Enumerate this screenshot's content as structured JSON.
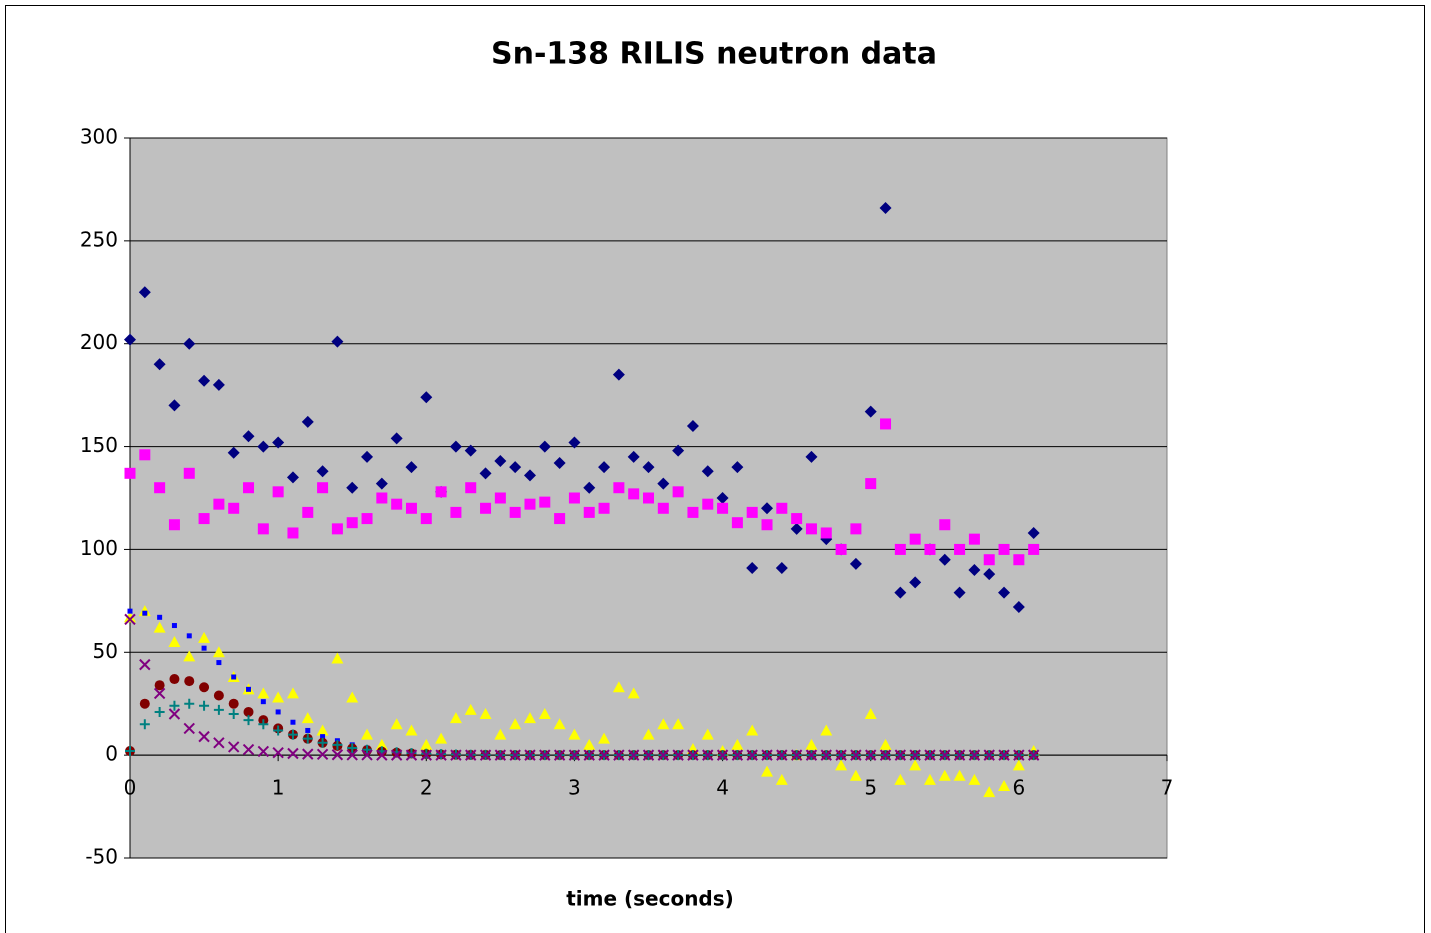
{
  "chart_data": {
    "type": "scatter",
    "title": "Sn-138 RILIS neutron data",
    "x_label": "time (seconds)",
    "xlim": [
      0,
      7
    ],
    "xticks": [
      0,
      1,
      2,
      3,
      4,
      5,
      6,
      7
    ],
    "ylim": [
      -50,
      300
    ],
    "yticks": [
      -50,
      0,
      50,
      100,
      150,
      200,
      250,
      300
    ],
    "grid": true,
    "plot_background": "#c0c0c0",
    "x": [
      0,
      0.1,
      0.2,
      0.3,
      0.4,
      0.5,
      0.6,
      0.7,
      0.8,
      0.9,
      1,
      1.1,
      1.2,
      1.3,
      1.4,
      1.5,
      1.6,
      1.7,
      1.8,
      1.9,
      2,
      2.1,
      2.2,
      2.3,
      2.4,
      2.5,
      2.6,
      2.7,
      2.8,
      2.9,
      3,
      3.1,
      3.2,
      3.3,
      3.4,
      3.5,
      3.6,
      3.7,
      3.8,
      3.9,
      4,
      4.1,
      4.2,
      4.3,
      4.4,
      4.5,
      4.6,
      4.7,
      4.8,
      4.9,
      5,
      5.1,
      5.2,
      5.3,
      5.4,
      5.5,
      5.6,
      5.7,
      5.8,
      5.9,
      6,
      6.1
    ],
    "series": [
      {
        "color": "#000080",
        "marker": "diamond",
        "values": [
          202,
          225,
          190,
          170,
          200,
          182,
          180,
          147,
          155,
          150,
          152,
          135,
          162,
          138,
          201,
          130,
          145,
          132,
          154,
          140,
          174,
          128,
          150,
          148,
          137,
          143,
          140,
          136,
          150,
          142,
          152,
          130,
          140,
          185,
          145,
          140,
          132,
          148,
          160,
          138,
          125,
          140,
          91,
          120,
          91,
          110,
          145,
          105,
          100,
          93,
          167,
          266,
          79,
          84,
          100,
          95,
          79,
          90,
          88,
          79,
          72,
          108
        ]
      },
      {
        "color": "#ff00ff",
        "marker": "square",
        "values": [
          137,
          146,
          130,
          112,
          137,
          115,
          122,
          120,
          130,
          110,
          128,
          108,
          118,
          130,
          110,
          113,
          115,
          125,
          122,
          120,
          115,
          128,
          118,
          130,
          120,
          125,
          118,
          122,
          123,
          115,
          125,
          118,
          120,
          130,
          127,
          125,
          120,
          128,
          118,
          122,
          120,
          113,
          118,
          112,
          120,
          115,
          110,
          108,
          100,
          110,
          132,
          161,
          100,
          105,
          100,
          112,
          100,
          105,
          95,
          100,
          95,
          100
        ]
      },
      {
        "color": "#ffff00",
        "marker": "triangle",
        "values": [
          67,
          70,
          62,
          55,
          48,
          57,
          50,
          38,
          32,
          30,
          28,
          30,
          18,
          12,
          47,
          28,
          10,
          5,
          15,
          12,
          5,
          8,
          18,
          22,
          20,
          10,
          15,
          18,
          20,
          15,
          10,
          5,
          8,
          33,
          30,
          10,
          15,
          15,
          3,
          10,
          2,
          5,
          12,
          -8,
          -12,
          0,
          5,
          12,
          -5,
          -10,
          20,
          5,
          -12,
          -5,
          -12,
          -10,
          -10,
          -12,
          -18,
          -15,
          -5,
          2
        ]
      },
      {
        "color": "#0000ff",
        "marker": "small-square",
        "values": [
          70,
          69,
          67,
          63,
          58,
          52,
          45,
          38,
          32,
          26,
          21,
          16,
          12,
          9,
          7,
          5,
          3.5,
          2.5,
          1.7,
          1.1,
          0.7,
          0.5,
          0.3,
          0.2,
          0.1,
          0,
          0,
          0,
          0,
          0,
          0,
          0,
          0,
          0,
          0,
          0,
          0,
          0,
          0,
          0,
          0,
          0,
          0,
          0,
          0,
          0,
          0,
          0,
          0,
          0,
          0,
          0,
          0,
          0,
          0,
          0,
          0,
          0,
          0,
          0,
          0,
          0
        ]
      },
      {
        "color": "#800000",
        "marker": "circle",
        "values": [
          2,
          25,
          34,
          37,
          36,
          33,
          29,
          25,
          21,
          17,
          13,
          10,
          8,
          6,
          4.5,
          3.3,
          2.4,
          1.7,
          1.2,
          0.8,
          0.5,
          0.3,
          0.2,
          0.1,
          0.1,
          0,
          0,
          0,
          0,
          0,
          0,
          0,
          0,
          0,
          0,
          0,
          0,
          0,
          0,
          0,
          0,
          0,
          0,
          0,
          0,
          0,
          0,
          0,
          0,
          0,
          0,
          0,
          0,
          0,
          0,
          0,
          0,
          0,
          0,
          0,
          0,
          0
        ]
      },
      {
        "color": "#008080",
        "marker": "plus",
        "values": [
          2,
          15,
          21,
          24,
          25,
          24,
          22,
          20,
          17,
          15,
          12,
          10,
          8,
          6,
          5,
          3.5,
          2.6,
          1.9,
          1.4,
          1,
          0.7,
          0.5,
          0.3,
          0.2,
          0.1,
          0,
          0,
          0,
          0,
          0,
          0,
          0,
          0,
          0,
          0,
          0,
          0,
          0,
          0,
          0,
          0,
          0,
          0,
          0,
          0,
          0,
          0,
          0,
          0,
          0,
          0,
          0,
          0,
          0,
          0,
          0,
          0,
          0,
          0,
          0,
          0,
          0
        ]
      },
      {
        "color": "#800080",
        "marker": "cross",
        "values": [
          66,
          44,
          30,
          20,
          13,
          9,
          6,
          4,
          2.7,
          1.8,
          1.2,
          0.8,
          0.5,
          0.4,
          0.2,
          0.1,
          0.1,
          0,
          0,
          0,
          0,
          0,
          0,
          0,
          0,
          0,
          0,
          0,
          0,
          0,
          0,
          0,
          0,
          0,
          0,
          0,
          0,
          0,
          0,
          0,
          0,
          0,
          0,
          0,
          0,
          0,
          0,
          0,
          0,
          0,
          0,
          0,
          0,
          0,
          0,
          0,
          0,
          0,
          0,
          0,
          0,
          0
        ]
      }
    ]
  }
}
